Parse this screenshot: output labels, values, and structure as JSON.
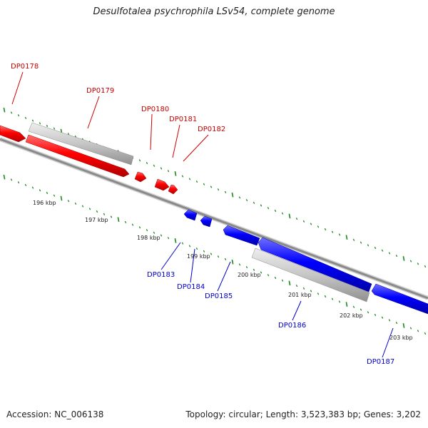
{
  "title": "Desulfotalea psychrophila LSv54, complete genome",
  "footer": {
    "accession": "Accession: NC_006138",
    "summary": "Topology: circular; Length: 3,523,383 bp; Genes: 3,202"
  },
  "colors": {
    "forward_gene": "#ff0000",
    "reverse_gene": "#0000ff",
    "pseudo_feature": "#c0c0c0",
    "backbone": "#808080",
    "ticks": "#1a8a1a"
  },
  "genes": [
    {
      "id": "DP0178",
      "strand": "forward"
    },
    {
      "id": "DP0179",
      "strand": "forward"
    },
    {
      "id": "DP0180",
      "strand": "forward"
    },
    {
      "id": "DP0181",
      "strand": "forward"
    },
    {
      "id": "DP0182",
      "strand": "forward"
    },
    {
      "id": "DP0183",
      "strand": "reverse"
    },
    {
      "id": "DP0184",
      "strand": "reverse"
    },
    {
      "id": "DP0185",
      "strand": "reverse"
    },
    {
      "id": "DP0186",
      "strand": "reverse"
    },
    {
      "id": "DP0187",
      "strand": "reverse"
    }
  ],
  "scale_labels": [
    "196 kbp",
    "197 kbp",
    "198 kbp",
    "199 kbp",
    "200 kbp",
    "201 kbp",
    "202 kbp",
    "203 kbp"
  ]
}
